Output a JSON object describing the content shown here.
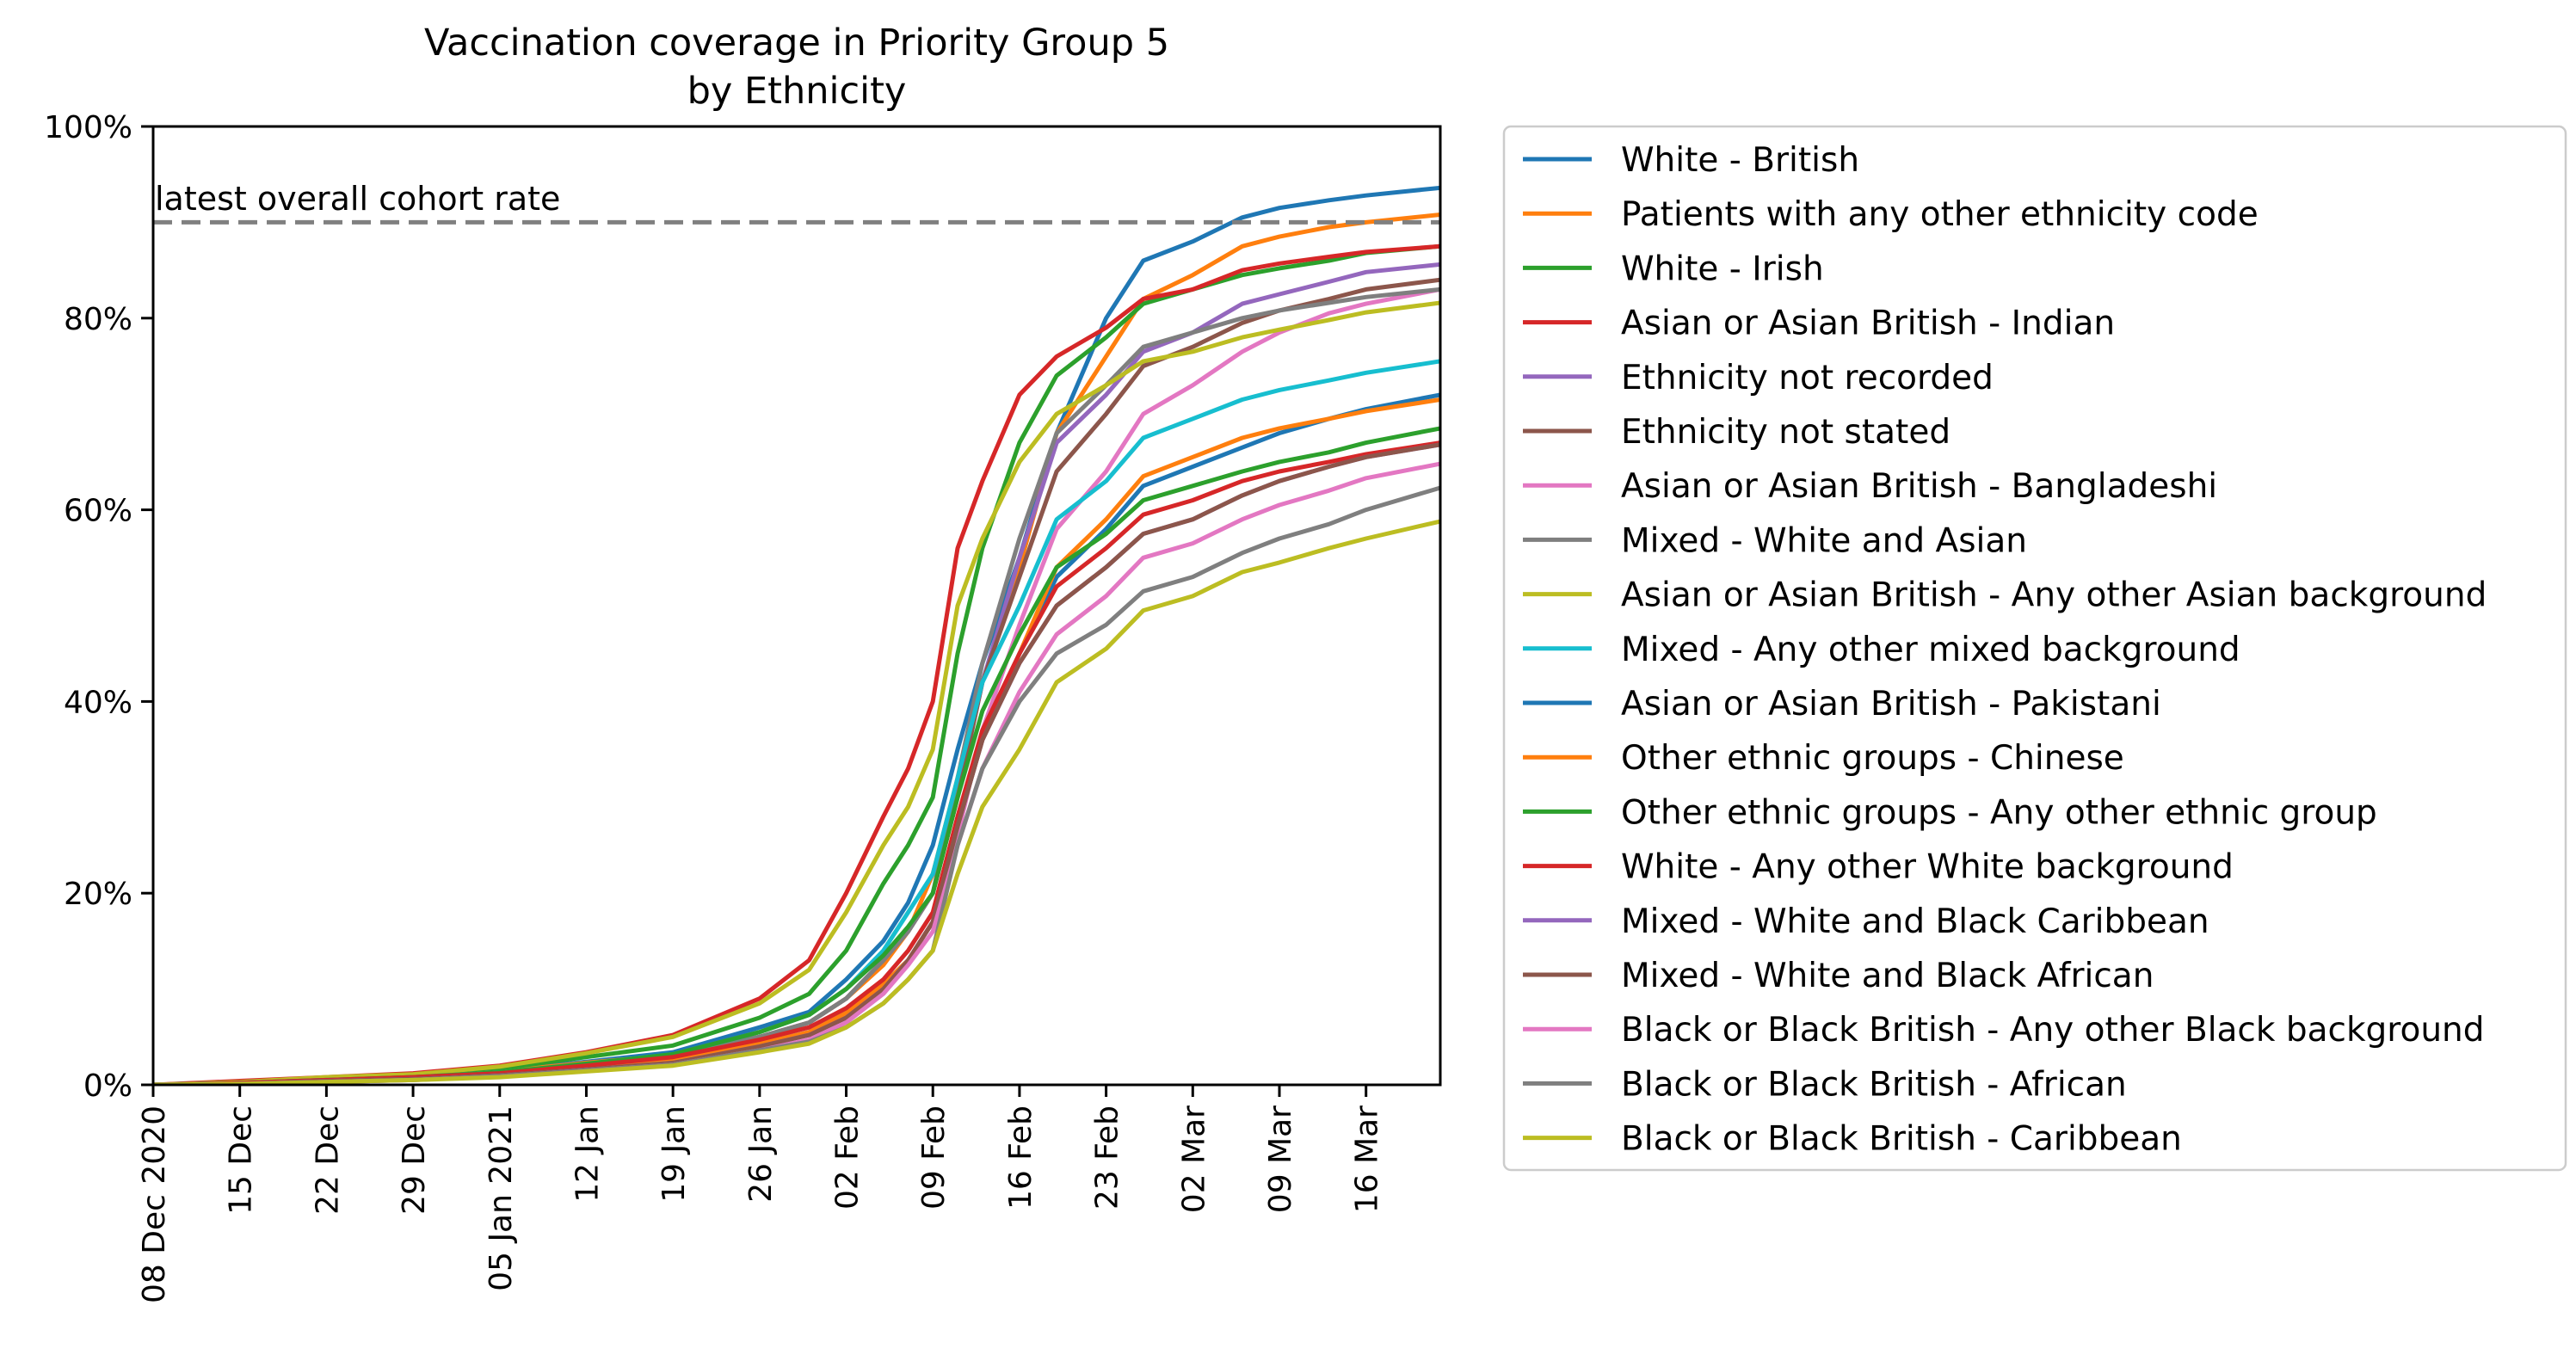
{
  "chart_data": {
    "type": "line",
    "title": "Vaccination coverage in Priority Group 5",
    "subtitle": "by Ethnicity",
    "xlabel": "",
    "ylabel": "",
    "ylim": [
      0,
      100
    ],
    "xlim": [
      "2020-12-08",
      "2021-03-22"
    ],
    "yticks": [
      0,
      20,
      40,
      60,
      80,
      100
    ],
    "ytick_labels": [
      "0%",
      "20%",
      "40%",
      "60%",
      "80%",
      "100%"
    ],
    "xticks": [
      "2020-12-08",
      "2020-12-15",
      "2020-12-22",
      "2020-12-29",
      "2021-01-05",
      "2021-01-12",
      "2021-01-19",
      "2021-01-26",
      "2021-02-02",
      "2021-02-09",
      "2021-02-16",
      "2021-02-23",
      "2021-03-02",
      "2021-03-09",
      "2021-03-16"
    ],
    "xtick_labels": [
      "08 Dec 2020",
      "15 Dec",
      "22 Dec",
      "29 Dec",
      "05 Jan 2021",
      "12 Jan",
      "19 Jan",
      "26 Jan",
      "02 Feb",
      "09 Feb",
      "16 Feb",
      "23 Feb",
      "02 Mar",
      "09 Mar",
      "16 Mar"
    ],
    "grid": false,
    "legend_position": "outside-right",
    "reference_line": {
      "value": 90,
      "label": "latest overall cohort rate",
      "color": "#808080",
      "style": "dashed"
    },
    "x": [
      "2020-12-08",
      "2020-12-15",
      "2020-12-22",
      "2020-12-29",
      "2021-01-05",
      "2021-01-12",
      "2021-01-19",
      "2021-01-26",
      "2021-01-30",
      "2021-02-02",
      "2021-02-05",
      "2021-02-07",
      "2021-02-09",
      "2021-02-11",
      "2021-02-13",
      "2021-02-16",
      "2021-02-19",
      "2021-02-23",
      "2021-02-26",
      "2021-03-02",
      "2021-03-06",
      "2021-03-09",
      "2021-03-13",
      "2021-03-16",
      "2021-03-22"
    ],
    "series": [
      {
        "name": "White - British",
        "color": "#1f77b4",
        "values": [
          0,
          0.2,
          0.6,
          0.9,
          1.5,
          2.4,
          3.4,
          6.0,
          7.6,
          11,
          15,
          19,
          25,
          35,
          44,
          55,
          68,
          80,
          86,
          88,
          90.5,
          91.5,
          92.3,
          92.8,
          93.6
        ]
      },
      {
        "name": "Patients with any other ethnicity code",
        "color": "#ff7f0e",
        "values": [
          0,
          0.2,
          0.5,
          0.9,
          1.4,
          2.3,
          3.1,
          5.0,
          6.5,
          9,
          12.5,
          16,
          22,
          32,
          42,
          54,
          68,
          76,
          82,
          84.5,
          87.5,
          88.5,
          89.5,
          90,
          90.8
        ]
      },
      {
        "name": "White - Irish",
        "color": "#2ca02c",
        "values": [
          0,
          0.3,
          0.7,
          1.0,
          1.7,
          2.9,
          4.1,
          7.0,
          9.5,
          14,
          21,
          25,
          30,
          45,
          56,
          67,
          74,
          78,
          81.5,
          83,
          84.5,
          85.2,
          86,
          86.8,
          87.5
        ]
      },
      {
        "name": "Asian or Asian British - Indian",
        "color": "#d62728",
        "values": [
          0,
          0.4,
          0.8,
          1.2,
          2.0,
          3.4,
          5.2,
          9.0,
          13,
          20,
          28,
          33,
          40,
          56,
          63,
          72,
          76,
          79,
          82,
          83,
          85,
          85.7,
          86.4,
          86.9,
          87.5
        ]
      },
      {
        "name": "Ethnicity not recorded",
        "color": "#9467bd",
        "values": [
          0,
          0.2,
          0.5,
          0.8,
          1.3,
          2.1,
          3.1,
          5.0,
          6.5,
          9,
          13,
          16,
          20,
          30,
          42,
          55,
          67,
          72,
          76.5,
          78.5,
          81.5,
          82.5,
          83.8,
          84.8,
          85.6
        ]
      },
      {
        "name": "Ethnicity not stated",
        "color": "#8c564b",
        "values": [
          0,
          0.2,
          0.5,
          0.8,
          1.3,
          2.1,
          3.1,
          5.0,
          6.5,
          9,
          13,
          16,
          20,
          30,
          42,
          53,
          64,
          70,
          75,
          77,
          79.5,
          80.8,
          82,
          83,
          84
        ]
      },
      {
        "name": "Asian or Asian British - Bangladeshi",
        "color": "#e377c2",
        "values": [
          0,
          0.1,
          0.4,
          0.6,
          1.0,
          1.6,
          2.3,
          4.0,
          5.2,
          7,
          10,
          13,
          17,
          26,
          37,
          48,
          58,
          64,
          70,
          73,
          76.5,
          78.5,
          80.5,
          81.5,
          83
        ]
      },
      {
        "name": "Mixed - White and Asian",
        "color": "#7f7f7f",
        "values": [
          0,
          0.2,
          0.5,
          0.8,
          1.3,
          2.1,
          3.1,
          5.0,
          6.5,
          9,
          13,
          16,
          20,
          32,
          44,
          57,
          68,
          73,
          77,
          78.5,
          80,
          80.8,
          81.6,
          82.2,
          83
        ]
      },
      {
        "name": "Asian or Asian British - Any other Asian background",
        "color": "#bcbd22",
        "values": [
          0,
          0.3,
          0.8,
          1.1,
          1.9,
          3.3,
          5.0,
          8.5,
          12,
          18,
          25,
          29,
          35,
          50,
          57,
          65,
          70,
          73,
          75.5,
          76.5,
          78,
          78.8,
          79.8,
          80.6,
          81.6
        ]
      },
      {
        "name": "Mixed - Any other mixed background",
        "color": "#17becf",
        "values": [
          0,
          0.2,
          0.5,
          0.8,
          1.3,
          2.2,
          3.2,
          5.5,
          7.3,
          10,
          14,
          18,
          22,
          32,
          42,
          50,
          59,
          63,
          67.5,
          69.5,
          71.5,
          72.5,
          73.5,
          74.3,
          75.5
        ]
      },
      {
        "name": "Asian or Asian British - Pakistani",
        "color": "#1f77b4",
        "values": [
          0,
          0.1,
          0.4,
          0.6,
          1.0,
          1.7,
          2.5,
          4.3,
          5.5,
          7.5,
          10.5,
          13,
          17,
          27,
          36,
          45,
          53,
          58,
          62.5,
          64.5,
          66.5,
          68,
          69.5,
          70.5,
          72
        ]
      },
      {
        "name": "Other ethnic groups - Chinese",
        "color": "#ff7f0e",
        "values": [
          0,
          0.1,
          0.4,
          0.6,
          1.0,
          1.7,
          2.5,
          4.3,
          5.5,
          7.5,
          10.5,
          13,
          17,
          27,
          36,
          45,
          54,
          59,
          63.5,
          65.5,
          67.5,
          68.5,
          69.5,
          70.3,
          71.5
        ]
      },
      {
        "name": "Other ethnic groups - Any other ethnic group",
        "color": "#2ca02c",
        "values": [
          0,
          0.2,
          0.5,
          0.8,
          1.3,
          2.2,
          3.2,
          5.5,
          7.3,
          10,
          13.5,
          16.5,
          20,
          30,
          39,
          47,
          54,
          57.5,
          61,
          62.5,
          64,
          65,
          66,
          67,
          68.5
        ]
      },
      {
        "name": "White - Any other White background",
        "color": "#d62728",
        "values": [
          0,
          0.2,
          0.5,
          0.8,
          1.2,
          2.0,
          2.9,
          4.7,
          6,
          8,
          11,
          14,
          18,
          28,
          37,
          45,
          52,
          56,
          59.5,
          61,
          63,
          64,
          65,
          65.8,
          67
        ]
      },
      {
        "name": "Mixed - White and Black Caribbean",
        "color": "#9467bd",
        "values": [
          0,
          0.1,
          0.4,
          0.6,
          1.0,
          1.6,
          2.3,
          4.0,
          5.2,
          7,
          10,
          13,
          17,
          27,
          36,
          44,
          50,
          54,
          57.5,
          59,
          61.5,
          63,
          64.5,
          65.5,
          66.8
        ]
      },
      {
        "name": "Mixed - White and Black African",
        "color": "#8c564b",
        "values": [
          0,
          0.1,
          0.4,
          0.6,
          1.0,
          1.6,
          2.3,
          4.0,
          5.2,
          7,
          10,
          13,
          17,
          27,
          36,
          44,
          50,
          54,
          57.5,
          59,
          61.5,
          63,
          64.5,
          65.5,
          66.8
        ]
      },
      {
        "name": "Black or Black British - Any other Black background",
        "color": "#e377c2",
        "values": [
          0,
          0.1,
          0.3,
          0.5,
          0.9,
          1.5,
          2.1,
          3.6,
          4.7,
          6.5,
          9.5,
          12.5,
          16,
          25,
          33,
          41,
          47,
          51,
          55,
          56.5,
          59,
          60.5,
          62,
          63.3,
          64.8
        ]
      },
      {
        "name": "Black or Black British - African",
        "color": "#7f7f7f",
        "values": [
          0,
          0.1,
          0.3,
          0.5,
          0.9,
          1.5,
          2.1,
          3.6,
          4.5,
          6,
          8.5,
          11,
          14,
          25,
          33,
          40,
          45,
          48,
          51.5,
          53,
          55.5,
          57,
          58.5,
          60,
          62.3
        ]
      },
      {
        "name": "Black or Black British - Caribbean",
        "color": "#bcbd22",
        "values": [
          0,
          0.1,
          0.3,
          0.5,
          0.8,
          1.4,
          2.0,
          3.4,
          4.3,
          6,
          8.5,
          11,
          14,
          22,
          29,
          35,
          42,
          45.5,
          49.5,
          51,
          53.5,
          54.5,
          56,
          57,
          58.8
        ]
      }
    ]
  }
}
